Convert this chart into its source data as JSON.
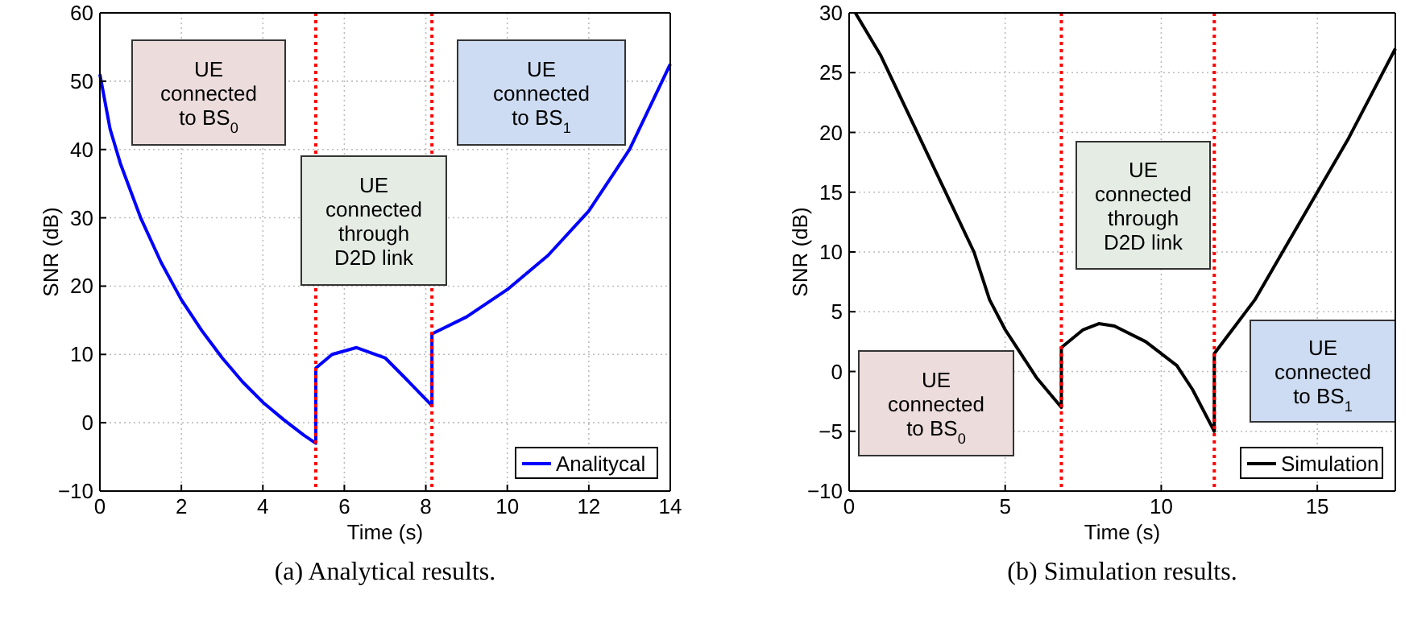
{
  "chart_data": [
    {
      "type": "line",
      "title": "(a) Analytical results.",
      "xlabel": "Time (s)",
      "ylabel": "SNR (dB)",
      "xlim": [
        0,
        14
      ],
      "xticks": [
        0,
        2,
        4,
        6,
        8,
        10,
        12,
        14
      ],
      "ylim": [
        -10,
        60
      ],
      "yticks": [
        -10,
        0,
        10,
        20,
        30,
        40,
        50,
        60
      ],
      "grid": true,
      "legend": "bottom right",
      "line_style": "solid",
      "series": [
        {
          "name": "Analitycal",
          "color": "#0000ff",
          "x": [
            0,
            0.25,
            0.5,
            1,
            1.5,
            2,
            2.5,
            3,
            3.5,
            4,
            4.5,
            5,
            5.3,
            5.3,
            5.7,
            6.3,
            7,
            7.5,
            8.15,
            8.15,
            9,
            10,
            11,
            12,
            13,
            14
          ],
          "values": [
            51,
            43,
            38,
            30,
            23.5,
            18,
            13.5,
            9.5,
            6,
            3,
            0.5,
            -1.8,
            -3,
            8,
            10,
            11,
            9.5,
            6.5,
            2.5,
            13,
            15.5,
            19.5,
            24.5,
            31,
            40,
            52.5
          ]
        }
      ],
      "ref_lines": [
        {
          "axis": "x",
          "value": 5.3,
          "color": "#ff0000",
          "line_style": "dotted"
        },
        {
          "axis": "x",
          "value": 8.15,
          "color": "#ff0000",
          "line_style": "dotted"
        }
      ],
      "annotations": [
        "UE\nconnected\nto BS$_{0}$",
        "UE\nconnected\nthrough\nD2D link",
        "UE\nconnected\nto BS$_{1}$"
      ]
    },
    {
      "type": "line",
      "title": "(b) Simulation results.",
      "xlabel": "Time (s)",
      "ylabel": "SNR (dB)",
      "xlim": [
        0,
        17.5
      ],
      "xticks": [
        0,
        5,
        10,
        15
      ],
      "ylim": [
        -10,
        30
      ],
      "yticks": [
        -10,
        -5,
        0,
        5,
        10,
        15,
        20,
        25,
        30
      ],
      "grid": true,
      "legend": "bottom right",
      "line_style": "solid",
      "series": [
        {
          "name": "Simulation",
          "color": "#000000",
          "x": [
            0.2,
            1,
            2,
            3,
            4,
            4.5,
            5,
            6,
            6.8,
            6.8,
            7.5,
            8,
            8.5,
            9.5,
            10.5,
            11,
            11.7,
            11.7,
            13,
            14,
            15,
            16,
            17,
            17.5
          ],
          "values": [
            30,
            26.5,
            21,
            15.5,
            10,
            6,
            3.5,
            -0.5,
            -3,
            2,
            3.5,
            4,
            3.8,
            2.5,
            0.5,
            -1.5,
            -5,
            1.5,
            6,
            10.5,
            15,
            19.5,
            24.5,
            27
          ]
        }
      ],
      "ref_lines": [
        {
          "axis": "x",
          "value": 6.8,
          "color": "#ff0000",
          "line_style": "dotted"
        },
        {
          "axis": "x",
          "value": 11.7,
          "color": "#ff0000",
          "line_style": "dotted"
        }
      ],
      "annotations": [
        "UE\nconnected\nto BS$_{0}$",
        "UE\nconnected\nthrough\nD2D link",
        "UE\nconnected\nto BS$_{1}$"
      ]
    }
  ]
}
